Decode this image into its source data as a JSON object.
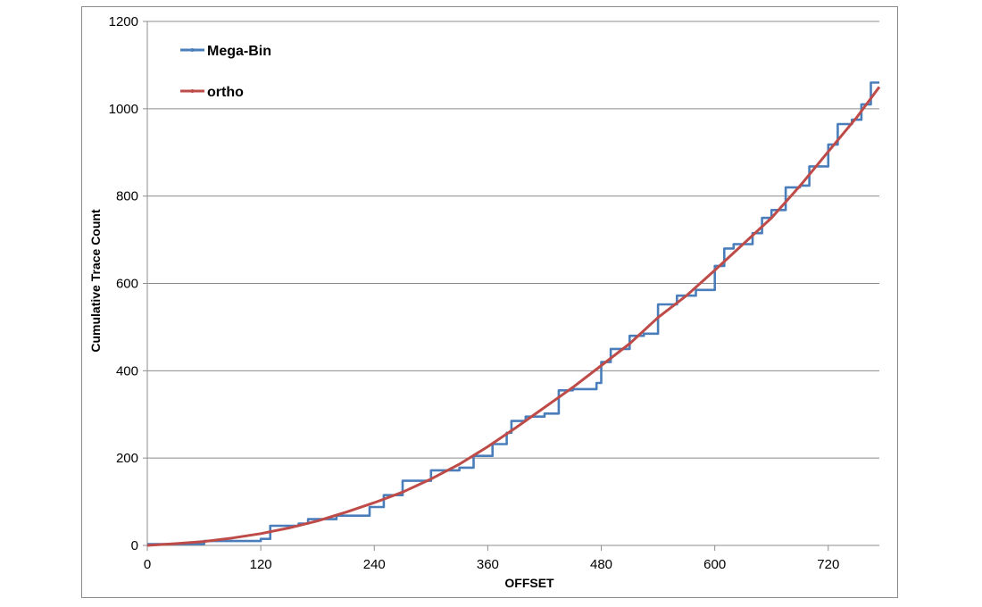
{
  "chart_data": {
    "type": "line",
    "xlabel": "OFFSET",
    "ylabel": "Cumulative Trace Count",
    "xlim": [
      0,
      774
    ],
    "ylim": [
      0,
      1200
    ],
    "x_ticks": [
      0,
      120,
      240,
      360,
      480,
      600,
      720
    ],
    "y_ticks": [
      0,
      200,
      400,
      600,
      800,
      1000,
      1200
    ],
    "grid": "horizontal",
    "legend_position": "top-left",
    "series": [
      {
        "name": "Mega-Bin",
        "color": "#4a7ebb",
        "style": "step",
        "x": [
          0,
          60,
          120,
          130,
          160,
          170,
          200,
          235,
          250,
          270,
          300,
          330,
          345,
          365,
          380,
          385,
          400,
          420,
          435,
          450,
          475,
          480,
          490,
          510,
          525,
          540,
          560,
          580,
          600,
          610,
          620,
          640,
          650,
          660,
          675,
          690,
          700,
          720,
          730,
          745,
          755,
          765,
          774
        ],
        "y": [
          3,
          10,
          15,
          45,
          50,
          60,
          68,
          88,
          115,
          148,
          172,
          178,
          205,
          232,
          258,
          285,
          295,
          302,
          355,
          358,
          372,
          420,
          450,
          480,
          485,
          552,
          572,
          585,
          640,
          680,
          690,
          715,
          750,
          768,
          820,
          824,
          868,
          918,
          965,
          975,
          1010,
          1060,
          1060
        ]
      },
      {
        "name": "ortho",
        "color": "#be4b48",
        "style": "line",
        "x": [
          0,
          30,
          60,
          90,
          120,
          150,
          180,
          210,
          240,
          270,
          300,
          330,
          360,
          390,
          420,
          450,
          480,
          510,
          540,
          570,
          600,
          630,
          660,
          690,
          720,
          750,
          774
        ],
        "y": [
          0,
          4,
          9,
          17,
          27,
          40,
          56,
          76,
          98,
          122,
          152,
          186,
          226,
          270,
          316,
          362,
          412,
          462,
          522,
          572,
          630,
          690,
          750,
          823,
          902,
          980,
          1050
        ]
      }
    ]
  }
}
